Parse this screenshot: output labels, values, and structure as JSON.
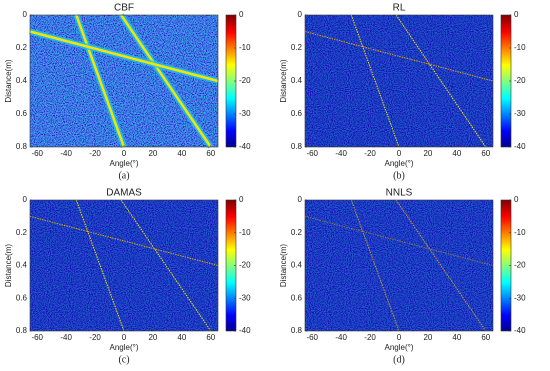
{
  "chart_data": [
    {
      "type": "heatmap",
      "title": "CBF",
      "caption": "(a)",
      "xlabel": "Angle(°)",
      "ylabel": "Distance(m)",
      "xlim": [
        -65,
        65
      ],
      "xticks": [
        -60,
        -40,
        -20,
        0,
        20,
        40,
        60
      ],
      "ylim": [
        0.8,
        0
      ],
      "yticks": [
        0,
        0.2,
        0.4,
        0.6,
        0.8
      ],
      "clim": [
        -40,
        0
      ],
      "cticks": [
        0,
        -10,
        -20,
        -30,
        -40
      ],
      "series": [
        {
          "x": [
            -33,
            0
          ],
          "y": [
            0,
            0.8
          ],
          "color": "#f5e400"
        },
        {
          "x": [
            -2,
            60
          ],
          "y": [
            0,
            0.8
          ],
          "color": "#f5e400"
        },
        {
          "x": [
            -65,
            65
          ],
          "y": [
            0.1,
            0.4
          ],
          "color": "#f5e400"
        }
      ]
    },
    {
      "type": "heatmap",
      "title": "RL",
      "caption": "(b)",
      "xlabel": "Angle(°)",
      "ylabel": "Distance(m)",
      "xlim": [
        -65,
        65
      ],
      "xticks": [
        -60,
        -40,
        -20,
        0,
        20,
        40,
        60
      ],
      "ylim": [
        0.8,
        0
      ],
      "yticks": [
        0,
        0.2,
        0.4,
        0.6,
        0.8
      ],
      "clim": [
        -40,
        0
      ],
      "cticks": [
        0,
        -10,
        -20,
        -30,
        -40
      ],
      "series": [
        {
          "x": [
            -33,
            0
          ],
          "y": [
            0,
            0.8
          ],
          "color": "#f5e400"
        },
        {
          "x": [
            -2,
            60
          ],
          "y": [
            0,
            0.8
          ],
          "color": "#f5e400"
        },
        {
          "x": [
            -65,
            65
          ],
          "y": [
            0.1,
            0.4
          ],
          "color": "#d9a400"
        }
      ]
    },
    {
      "type": "heatmap",
      "title": "DAMAS",
      "caption": "(c)",
      "xlabel": "Angle(°)",
      "ylabel": "Distance(m)",
      "xlim": [
        -65,
        65
      ],
      "xticks": [
        -60,
        -40,
        -20,
        0,
        20,
        40,
        60
      ],
      "ylim": [
        0.8,
        0
      ],
      "yticks": [
        0,
        0.2,
        0.4,
        0.6,
        0.8
      ],
      "clim": [
        -40,
        0
      ],
      "cticks": [
        0,
        -10,
        -20,
        -30,
        -40
      ],
      "series": [
        {
          "x": [
            -33,
            0
          ],
          "y": [
            0,
            0.8
          ],
          "color": "#f5e400"
        },
        {
          "x": [
            -2,
            60
          ],
          "y": [
            0,
            0.8
          ],
          "color": "#f5e400"
        },
        {
          "x": [
            -65,
            65
          ],
          "y": [
            0.1,
            0.4
          ],
          "color": "#d9a400"
        }
      ]
    },
    {
      "type": "heatmap",
      "title": "NNLS",
      "caption": "(d)",
      "xlabel": "Angle(°)",
      "ylabel": "Distance(m)",
      "xlim": [
        -65,
        65
      ],
      "xticks": [
        -60,
        -40,
        -20,
        0,
        20,
        40,
        60
      ],
      "ylim": [
        0.8,
        0
      ],
      "yticks": [
        0,
        0.2,
        0.4,
        0.6,
        0.8
      ],
      "clim": [
        -40,
        0
      ],
      "cticks": [
        0,
        -10,
        -20,
        -30,
        -40
      ],
      "series": [
        {
          "x": [
            -33,
            0
          ],
          "y": [
            0,
            0.8
          ],
          "color": "#c89a20"
        },
        {
          "x": [
            -2,
            60
          ],
          "y": [
            0,
            0.8
          ],
          "color": "#c89a20"
        },
        {
          "x": [
            -65,
            65
          ],
          "y": [
            0.1,
            0.4
          ],
          "color": "#8a7a40"
        }
      ]
    }
  ]
}
